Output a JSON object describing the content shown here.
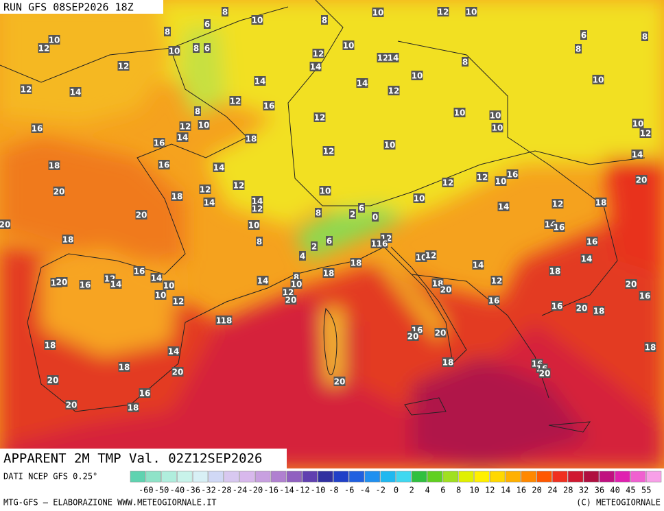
{
  "header": {
    "run": "RUN GFS 08SEP2026 18Z"
  },
  "title": "APPARENT 2M TMP Val. 02Z12SEP2026",
  "map": {
    "labels": [
      10,
      8,
      10,
      12,
      10,
      8,
      8,
      6,
      10,
      12,
      10,
      8,
      6,
      6,
      8,
      8,
      12,
      10,
      12,
      14,
      8,
      12,
      14,
      10,
      14,
      14,
      10,
      12,
      14,
      12,
      12,
      16,
      8,
      10,
      10,
      12,
      16,
      12,
      10,
      10,
      10,
      12,
      14,
      18,
      16,
      10,
      12,
      14,
      18,
      16,
      14,
      16,
      12,
      10,
      12,
      20,
      12,
      20,
      12,
      10,
      18,
      14,
      14,
      10,
      12,
      18,
      12,
      6,
      14,
      8,
      20,
      2,
      0,
      20,
      10,
      14,
      16,
      12,
      18,
      8,
      6,
      2,
      16,
      16,
      16,
      4,
      10,
      12,
      18,
      14,
      14,
      16,
      18,
      18,
      8,
      12,
      14,
      14,
      12,
      20,
      16,
      10,
      14,
      12,
      18,
      20,
      10,
      10,
      12,
      20,
      16,
      12,
      20,
      16,
      20,
      16,
      18,
      18,
      18,
      16,
      20,
      20,
      18,
      18,
      14,
      18,
      18,
      16,
      16,
      20,
      20,
      20,
      20,
      16,
      20,
      18
    ]
  },
  "legend": {
    "source": "DATI NCEP GFS 0.25°",
    "labels": [
      -60,
      -50,
      -40,
      -36,
      -32,
      -28,
      -24,
      -20,
      -16,
      -14,
      -12,
      -10,
      -8,
      -6,
      -4,
      -2,
      0,
      2,
      4,
      6,
      8,
      10,
      12,
      14,
      16,
      20,
      24,
      28,
      32,
      36,
      40,
      45,
      55
    ],
    "colors": [
      "#5fd3b0",
      "#8fe3c8",
      "#b0eedd",
      "#c8f3ea",
      "#d8f0f5",
      "#d0d8f5",
      "#d8c8f0",
      "#d8b8ec",
      "#c8a0e0",
      "#b080d0",
      "#9060c0",
      "#6040b0",
      "#3030a0",
      "#2040c8",
      "#2060e0",
      "#2090f0",
      "#20b8f0",
      "#40d8f0",
      "#30c040",
      "#60d020",
      "#a0e020",
      "#e0f000",
      "#fff000",
      "#ffd800",
      "#ffb000",
      "#ff8800",
      "#ff5800",
      "#f03020",
      "#d01830",
      "#b01040",
      "#c01080",
      "#e020b0",
      "#f060d0",
      "#f8a0e8"
    ]
  },
  "footer": {
    "left": "MTG-GFS — ELABORAZIONE WWW.METEOGIORNALE.IT",
    "right": "(C) METEOGIORNALE"
  }
}
